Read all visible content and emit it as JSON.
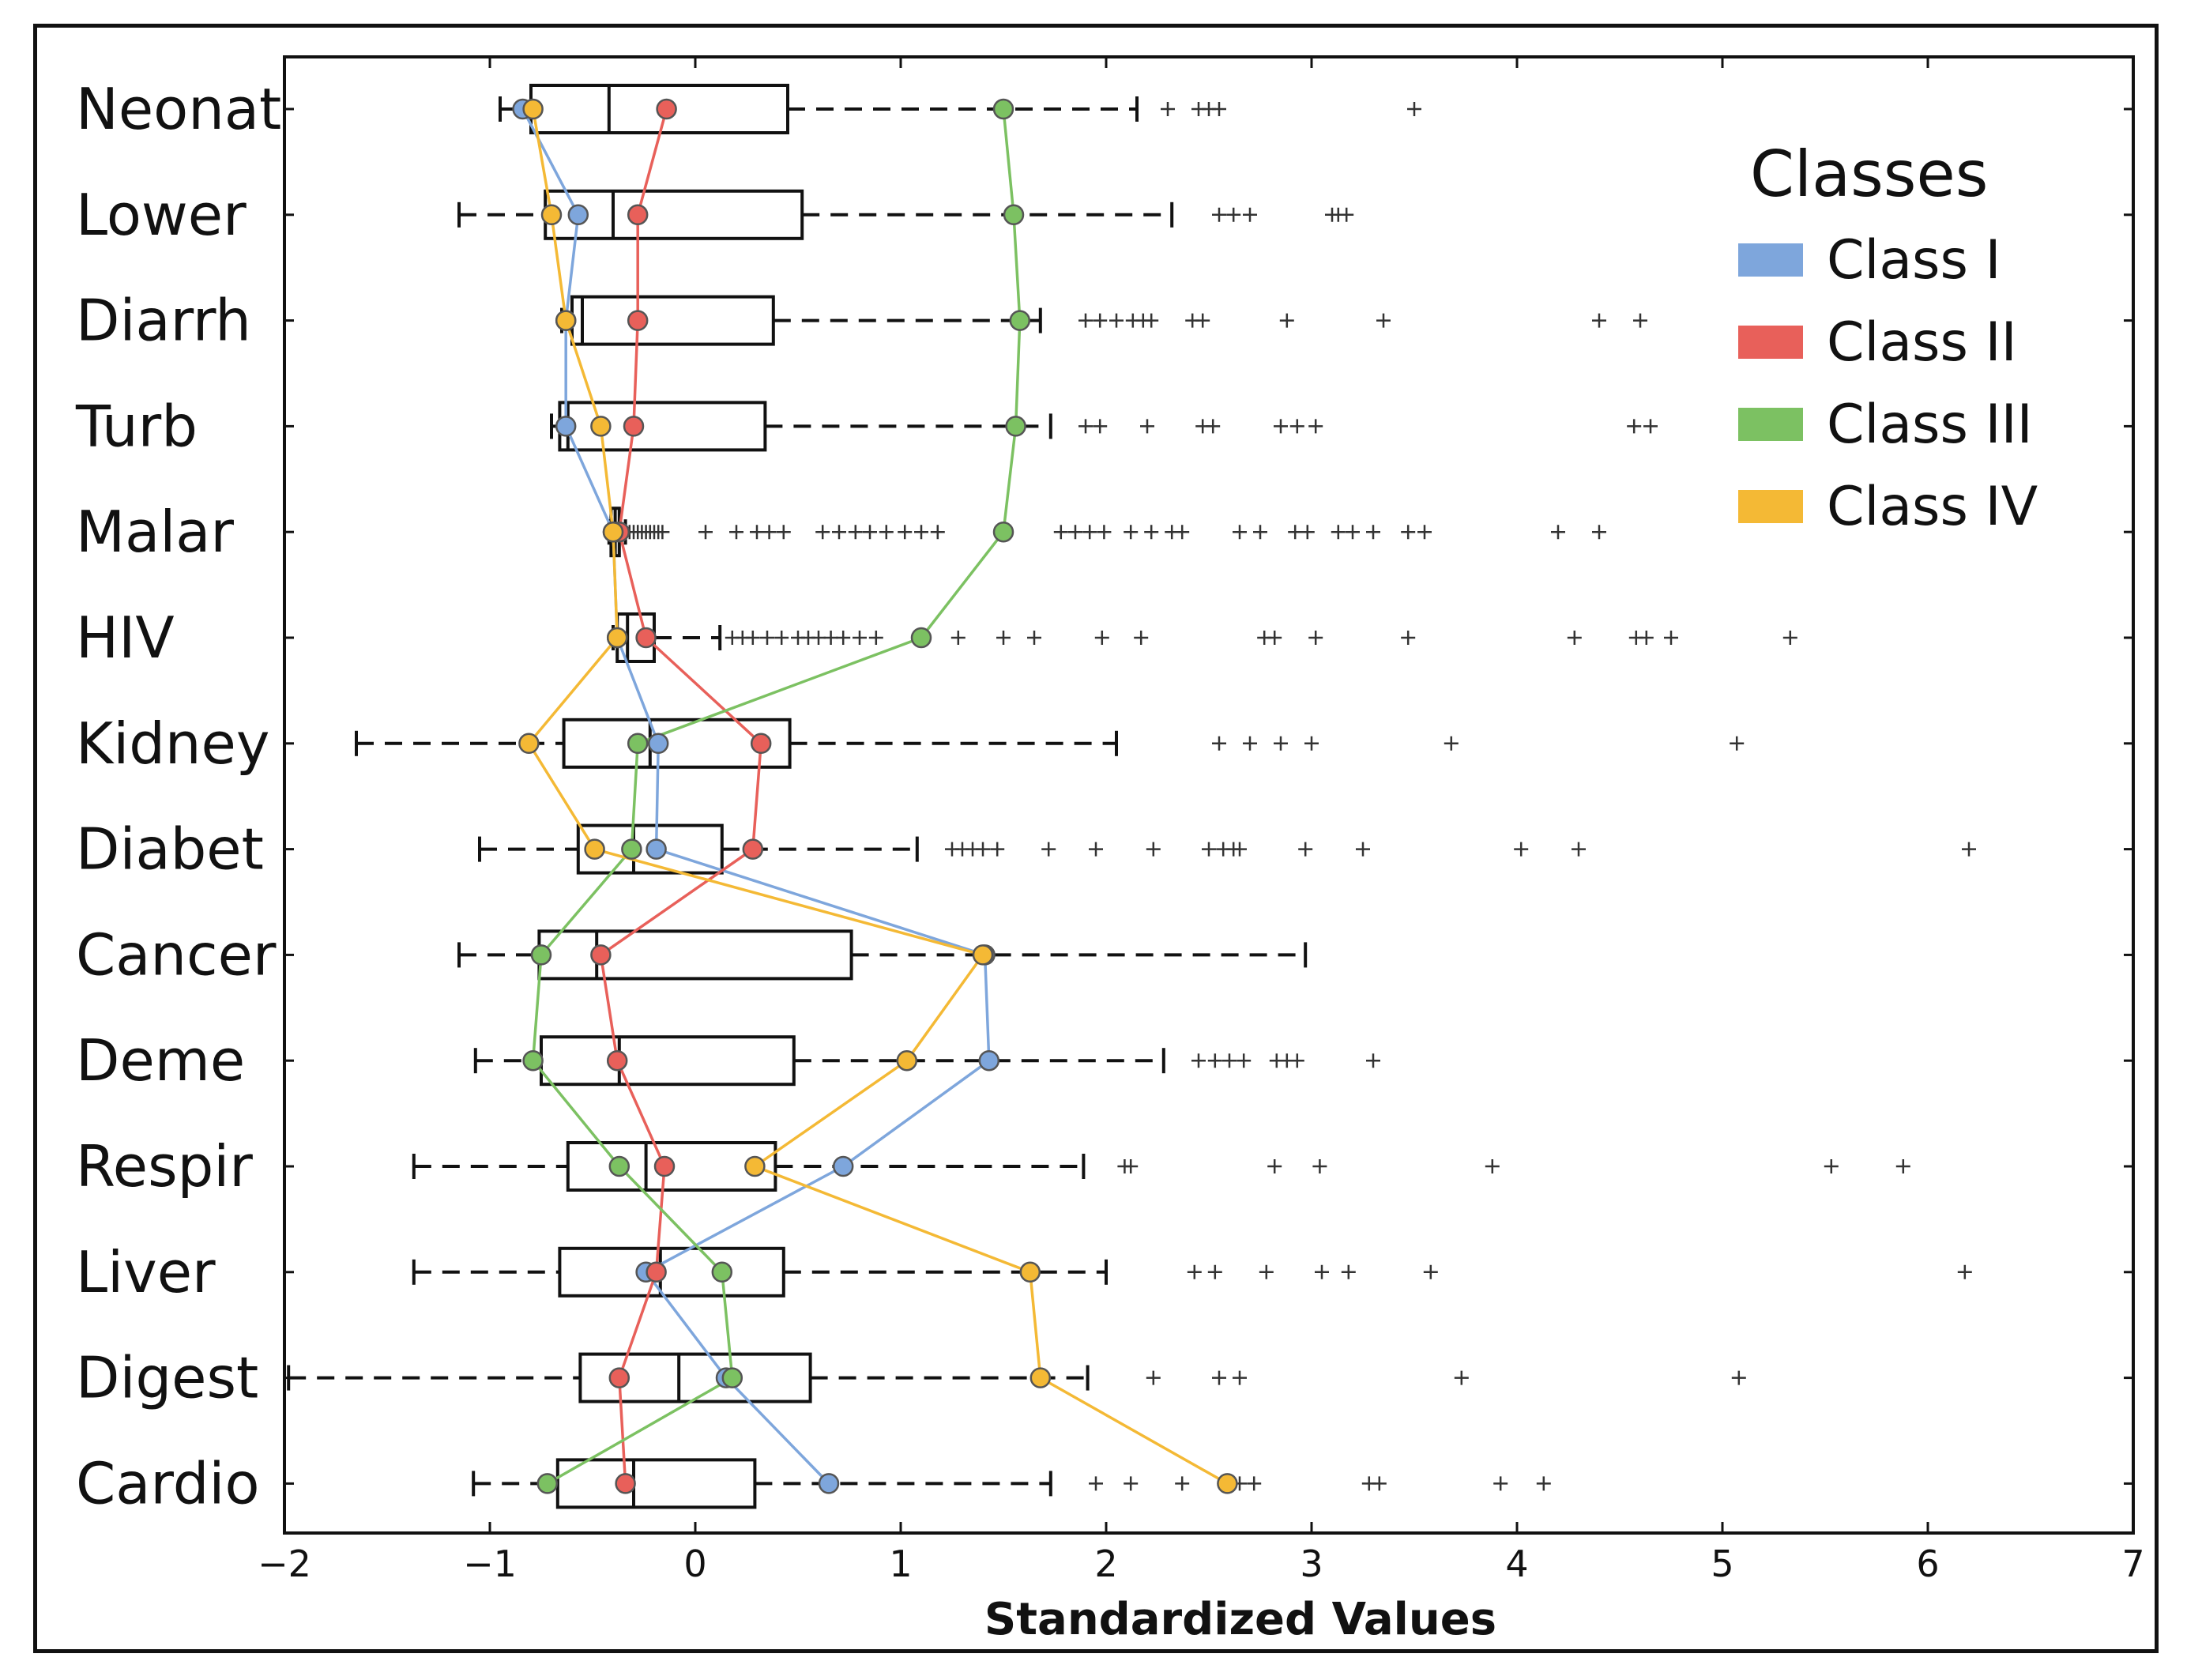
{
  "chart_data": {
    "type": "boxplot",
    "orientation": "horizontal",
    "xlabel": "Standardized Values",
    "xlim": [
      -2,
      7
    ],
    "xticks": [
      -2,
      -1,
      0,
      1,
      2,
      3,
      4,
      5,
      6,
      7
    ],
    "xtick_labels": [
      "−2",
      "−1",
      "0",
      "1",
      "2",
      "3",
      "4",
      "5",
      "6",
      "7"
    ],
    "categories": [
      "Neonat",
      "Lower",
      "Diarrh",
      "Turb",
      "Malar",
      "HIV",
      "Kidney",
      "Diabet",
      "Cancer",
      "Deme",
      "Respir",
      "Liver",
      "Digest",
      "Cardio"
    ],
    "boxes": [
      {
        "whisker_low": -0.95,
        "q1": -0.8,
        "median": -0.42,
        "q3": 0.45,
        "whisker_high": 2.15,
        "outliers": [
          2.3,
          2.45,
          2.5,
          2.55,
          3.5
        ]
      },
      {
        "whisker_low": -1.15,
        "q1": -0.73,
        "median": -0.4,
        "q3": 0.52,
        "whisker_high": 2.32,
        "outliers": [
          2.55,
          2.62,
          2.7,
          3.1,
          3.13,
          3.17
        ]
      },
      {
        "whisker_low": -0.65,
        "q1": -0.6,
        "median": -0.55,
        "q3": 0.38,
        "whisker_high": 1.68,
        "outliers": [
          1.9,
          1.97,
          2.05,
          2.13,
          2.18,
          2.22,
          2.42,
          2.47,
          2.88,
          3.35,
          4.4,
          4.6
        ]
      },
      {
        "whisker_low": -0.7,
        "q1": -0.66,
        "median": -0.62,
        "q3": 0.34,
        "whisker_high": 1.73,
        "outliers": [
          1.9,
          1.97,
          2.2,
          2.47,
          2.52,
          2.85,
          2.93,
          3.02,
          4.57,
          4.65
        ]
      },
      {
        "whisker_low": -0.42,
        "q1": -0.41,
        "median": -0.39,
        "q3": -0.37,
        "whisker_high": -0.34,
        "outliers": [
          -0.32,
          -0.3,
          -0.28,
          -0.26,
          -0.24,
          -0.22,
          -0.2,
          -0.18,
          -0.16,
          0.05,
          0.2,
          0.3,
          0.36,
          0.43,
          0.62,
          0.7,
          0.78,
          0.85,
          0.93,
          1.02,
          1.1,
          1.18,
          1.78,
          1.85,
          1.92,
          1.99,
          2.12,
          2.22,
          2.32,
          2.37,
          2.65,
          2.75,
          2.92,
          2.98,
          3.13,
          3.2,
          3.3,
          3.47,
          3.55,
          4.2,
          4.4
        ]
      },
      {
        "whisker_low": -0.4,
        "q1": -0.38,
        "median": -0.33,
        "q3": -0.2,
        "whisker_high": 0.12,
        "outliers": [
          0.18,
          0.23,
          0.28,
          0.35,
          0.42,
          0.5,
          0.55,
          0.6,
          0.66,
          0.72,
          0.8,
          0.88,
          1.28,
          1.5,
          1.65,
          1.98,
          2.17,
          2.77,
          2.82,
          3.02,
          3.47,
          4.28,
          4.58,
          4.63,
          4.75,
          5.33
        ]
      },
      {
        "whisker_low": -1.65,
        "q1": -0.64,
        "median": -0.22,
        "q3": 0.46,
        "whisker_high": 2.05,
        "outliers": [
          2.55,
          2.7,
          2.85,
          3.0,
          3.68,
          5.07
        ]
      },
      {
        "whisker_low": -1.05,
        "q1": -0.57,
        "median": -0.3,
        "q3": 0.13,
        "whisker_high": 1.08,
        "outliers": [
          1.25,
          1.3,
          1.35,
          1.4,
          1.47,
          1.72,
          1.95,
          2.23,
          2.5,
          2.57,
          2.62,
          2.65,
          2.97,
          3.25,
          4.02,
          4.3,
          6.2
        ]
      },
      {
        "whisker_low": -1.15,
        "q1": -0.76,
        "median": -0.48,
        "q3": 0.76,
        "whisker_high": 2.97,
        "outliers": []
      },
      {
        "whisker_low": -1.07,
        "q1": -0.75,
        "median": -0.37,
        "q3": 0.48,
        "whisker_high": 2.28,
        "outliers": [
          2.45,
          2.53,
          2.6,
          2.67,
          2.83,
          2.88,
          2.93,
          3.3
        ]
      },
      {
        "whisker_low": -1.37,
        "q1": -0.62,
        "median": -0.24,
        "q3": 0.39,
        "whisker_high": 1.89,
        "outliers": [
          2.09,
          2.12,
          2.82,
          3.04,
          3.88,
          5.53,
          5.88
        ]
      },
      {
        "whisker_low": -1.37,
        "q1": -0.66,
        "median": -0.17,
        "q3": 0.43,
        "whisker_high": 2.0,
        "outliers": [
          2.43,
          2.53,
          2.78,
          3.05,
          3.18,
          3.58,
          6.18
        ]
      },
      {
        "whisker_low": -1.98,
        "q1": -0.56,
        "median": -0.08,
        "q3": 0.56,
        "whisker_high": 1.91,
        "outliers": [
          2.23,
          2.55,
          2.65,
          3.73,
          5.08
        ]
      },
      {
        "whisker_low": -1.08,
        "q1": -0.67,
        "median": -0.3,
        "q3": 0.29,
        "whisker_high": 1.73,
        "outliers": [
          1.95,
          2.12,
          2.37,
          2.65,
          2.72,
          3.28,
          3.33,
          3.92,
          4.13
        ]
      }
    ],
    "series": [
      {
        "name": "Class I",
        "color": "#7ea6dc",
        "values": [
          -0.84,
          -0.57,
          -0.63,
          -0.63,
          -0.4,
          -0.38,
          -0.18,
          -0.19,
          1.41,
          1.43,
          0.72,
          -0.24,
          0.15,
          0.65
        ]
      },
      {
        "name": "Class II",
        "color": "#e8605a",
        "values": [
          -0.14,
          -0.28,
          -0.28,
          -0.3,
          -0.37,
          -0.24,
          0.32,
          0.28,
          -0.46,
          -0.38,
          -0.15,
          -0.19,
          -0.37,
          -0.34
        ]
      },
      {
        "name": "Class III",
        "color": "#7cc162",
        "values": [
          1.5,
          1.55,
          1.58,
          1.56,
          1.5,
          1.1,
          -0.28,
          -0.31,
          -0.75,
          -0.79,
          -0.37,
          0.13,
          0.18,
          -0.72
        ]
      },
      {
        "name": "Class IV",
        "color": "#f4b935",
        "values": [
          -0.79,
          -0.7,
          -0.63,
          -0.46,
          -0.4,
          -0.38,
          -0.81,
          -0.49,
          1.4,
          1.03,
          0.29,
          1.63,
          1.68,
          2.59
        ]
      }
    ],
    "legend": {
      "title": "Classes",
      "position": "top-right"
    }
  }
}
